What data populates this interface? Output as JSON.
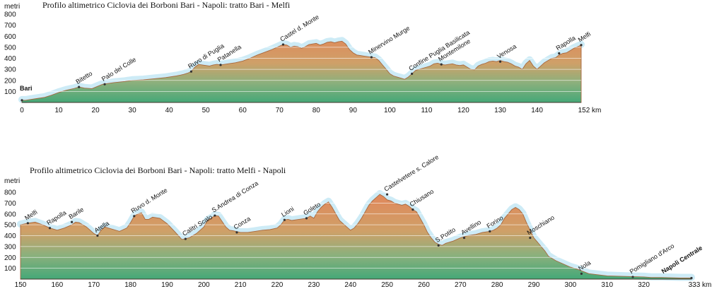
{
  "chart_data": [
    {
      "type": "area",
      "title": "Profilo altimetrico Ciclovia dei Borboni Bari - Napoli: tratto Bari - Melfi",
      "ylabel": "metri",
      "xunit": "km",
      "xlim": [
        0,
        152
      ],
      "ylim": [
        0,
        800
      ],
      "x_ticks": [
        {
          "value": 0,
          "label": "0"
        },
        {
          "value": 10,
          "label": "10"
        },
        {
          "value": 20,
          "label": "20"
        },
        {
          "value": 30,
          "label": "30"
        },
        {
          "value": 40,
          "label": "40"
        },
        {
          "value": 50,
          "label": "50"
        },
        {
          "value": 60,
          "label": "60"
        },
        {
          "value": 70,
          "label": "70",
          "large": true
        },
        {
          "value": 80,
          "label": "80"
        },
        {
          "value": 90,
          "label": "90"
        },
        {
          "value": 100,
          "label": "100"
        },
        {
          "value": 110,
          "label": "110"
        },
        {
          "value": 120,
          "label": "120"
        },
        {
          "value": 130,
          "label": "130"
        },
        {
          "value": 140,
          "label": "140"
        },
        {
          "value": 152,
          "label": "152 km"
        }
      ],
      "y_ticks": [
        100,
        200,
        300,
        400,
        500,
        600,
        700,
        800
      ],
      "profile": {
        "x": [
          0,
          1,
          2,
          4,
          6,
          8,
          10,
          12,
          14,
          15.5,
          17,
          19,
          20.5,
          22,
          23,
          25,
          28,
          30,
          33,
          36,
          39,
          42,
          44,
          45,
          46,
          47,
          48,
          49,
          50,
          51,
          52,
          53,
          54,
          56,
          58,
          60,
          62,
          64,
          66,
          68,
          70,
          71,
          72,
          73,
          74,
          75,
          76,
          77,
          78,
          79,
          80,
          81,
          82,
          83,
          84,
          85,
          86,
          87,
          88,
          89,
          90,
          91,
          92,
          93,
          94,
          95,
          96,
          97,
          98,
          99,
          100,
          101,
          102,
          103,
          104,
          105,
          106,
          107,
          108,
          109,
          110,
          111,
          112,
          113,
          114,
          115,
          116,
          117,
          118,
          119,
          120,
          121,
          122,
          123,
          124,
          125,
          126,
          127,
          128,
          129,
          130,
          131,
          132,
          133,
          134,
          135,
          136,
          137,
          138,
          139,
          140,
          141,
          142,
          143,
          144,
          145,
          146,
          147,
          148,
          149,
          150,
          151,
          152
        ],
        "y": [
          20,
          20,
          25,
          35,
          45,
          65,
          90,
          110,
          125,
          140,
          130,
          125,
          145,
          165,
          170,
          180,
          190,
          200,
          205,
          215,
          225,
          240,
          255,
          265,
          280,
          320,
          345,
          340,
          335,
          330,
          340,
          345,
          340,
          350,
          360,
          375,
          400,
          430,
          455,
          480,
          510,
          525,
          520,
          500,
          510,
          505,
          490,
          505,
          525,
          530,
          535,
          520,
          530,
          545,
          550,
          540,
          550,
          555,
          530,
          480,
          450,
          430,
          425,
          420,
          415,
          410,
          405,
          380,
          340,
          300,
          260,
          240,
          230,
          220,
          210,
          230,
          260,
          290,
          300,
          310,
          320,
          330,
          350,
          355,
          345,
          340,
          345,
          350,
          340,
          335,
          340,
          320,
          300,
          295,
          330,
          345,
          355,
          370,
          375,
          370,
          380,
          370,
          365,
          350,
          330,
          320,
          300,
          350,
          380,
          330,
          300,
          330,
          360,
          380,
          400,
          405,
          430,
          445,
          450,
          470,
          490,
          505,
          520
        ]
      },
      "places": [
        {
          "name": "Bari",
          "x": 0,
          "y": 20,
          "bold": true
        },
        {
          "name": "Bitetto",
          "x": 15.5,
          "y": 140
        },
        {
          "name": "Palo del Colle",
          "x": 22.5,
          "y": 165
        },
        {
          "name": "Ruvo di Puglia",
          "x": 46,
          "y": 280
        },
        {
          "name": "Patanella",
          "x": 54,
          "y": 340
        },
        {
          "name": "Castel d. Monte",
          "x": 71,
          "y": 525
        },
        {
          "name": "Minervino Murge",
          "x": 95,
          "y": 410
        },
        {
          "name": "Confine Puglia Basilicata",
          "x": 106,
          "y": 260
        },
        {
          "name": "Montemilone",
          "x": 114,
          "y": 345
        },
        {
          "name": "Venosa",
          "x": 130,
          "y": 370
        },
        {
          "name": "Rapolla",
          "x": 146,
          "y": 445
        },
        {
          "name": "Melfi",
          "x": 152,
          "y": 520
        }
      ]
    },
    {
      "type": "area",
      "title": "Profilo altimetrico Ciclovia dei Borboni Bari - Napoli: tratto Melfi - Napoli",
      "ylabel": "metri",
      "xunit": "km",
      "xlim": [
        150,
        333
      ],
      "ylim": [
        0,
        800
      ],
      "x_ticks": [
        {
          "value": 150,
          "label": "150"
        },
        {
          "value": 160,
          "label": "160"
        },
        {
          "value": 170,
          "label": "170"
        },
        {
          "value": 180,
          "label": "180"
        },
        {
          "value": 190,
          "label": "190"
        },
        {
          "value": 200,
          "label": "200"
        },
        {
          "value": 210,
          "label": "210"
        },
        {
          "value": 220,
          "label": "220"
        },
        {
          "value": 230,
          "label": "230"
        },
        {
          "value": 240,
          "label": "240"
        },
        {
          "value": 250,
          "label": "250"
        },
        {
          "value": 260,
          "label": "260"
        },
        {
          "value": 270,
          "label": "270"
        },
        {
          "value": 280,
          "label": "280"
        },
        {
          "value": 290,
          "label": "290"
        },
        {
          "value": 300,
          "label": "300"
        },
        {
          "value": 310,
          "label": "310"
        },
        {
          "value": 320,
          "label": "320"
        },
        {
          "value": 333,
          "label": "333 km"
        }
      ],
      "y_ticks": [
        100,
        200,
        300,
        400,
        500,
        600,
        700,
        800
      ],
      "profile": {
        "x": [
          150,
          152,
          154,
          156,
          158,
          160,
          162,
          164,
          165,
          166,
          168,
          170,
          171,
          172,
          173,
          175,
          177,
          179,
          180,
          181,
          182,
          183,
          184,
          185,
          186,
          188,
          190,
          192,
          194,
          196,
          198,
          200,
          201,
          202,
          203,
          204,
          205,
          206,
          207,
          208,
          210,
          212,
          214,
          216,
          218,
          220,
          221,
          222,
          223,
          224,
          225,
          226,
          228,
          229,
          230,
          231,
          232,
          233,
          234,
          235,
          236,
          237,
          238,
          239,
          240,
          241,
          242,
          243,
          244,
          245,
          246,
          247,
          248,
          249,
          250,
          251,
          252,
          253,
          254,
          255,
          256,
          257,
          258,
          259,
          260,
          261,
          262,
          263,
          264,
          265,
          266,
          268,
          270,
          272,
          274,
          276,
          278,
          279,
          280,
          281,
          282,
          283,
          284,
          285,
          286,
          287,
          288,
          289,
          290,
          291,
          292,
          293,
          294,
          296,
          298,
          300,
          302,
          305,
          310,
          315,
          320,
          322,
          325,
          330,
          333
        ],
        "y": [
          500,
          515,
          525,
          500,
          470,
          450,
          470,
          500,
          525,
          520,
          480,
          420,
          400,
          450,
          480,
          460,
          440,
          470,
          520,
          580,
          600,
          610,
          550,
          550,
          570,
          560,
          510,
          440,
          365,
          380,
          420,
          480,
          540,
          560,
          585,
          580,
          530,
          480,
          450,
          445,
          430,
          430,
          440,
          450,
          455,
          470,
          500,
          545,
          550,
          540,
          545,
          550,
          560,
          580,
          560,
          620,
          660,
          690,
          710,
          660,
          600,
          540,
          510,
          480,
          450,
          470,
          510,
          560,
          620,
          680,
          720,
          750,
          780,
          760,
          730,
          720,
          700,
          690,
          680,
          690,
          670,
          640,
          620,
          560,
          500,
          430,
          380,
          340,
          320,
          310,
          330,
          350,
          380,
          400,
          410,
          430,
          440,
          450,
          470,
          500,
          560,
          600,
          640,
          660,
          640,
          600,
          520,
          450,
          380,
          340,
          300,
          260,
          210,
          170,
          140,
          110,
          90,
          50,
          30,
          25,
          20,
          15,
          15,
          10,
          10
        ]
      },
      "places": [
        {
          "name": "Melfi",
          "x": 152,
          "y": 515
        },
        {
          "name": "Rapolla",
          "x": 158,
          "y": 470
        },
        {
          "name": "Barile",
          "x": 164,
          "y": 525
        },
        {
          "name": "Atella",
          "x": 171,
          "y": 400
        },
        {
          "name": "Ruvo d. Monte",
          "x": 181,
          "y": 580
        },
        {
          "name": "Calitri Scalo",
          "x": 195,
          "y": 370
        },
        {
          "name": "S.Andrea di Conza",
          "x": 203,
          "y": 585
        },
        {
          "name": "Conza",
          "x": 209,
          "y": 430
        },
        {
          "name": "Lioni",
          "x": 222,
          "y": 545
        },
        {
          "name": "Goleto",
          "x": 228,
          "y": 560
        },
        {
          "name": "Castelvetere s. Calore",
          "x": 250,
          "y": 780
        },
        {
          "name": "Chiusano",
          "x": 257,
          "y": 640
        },
        {
          "name": "S.Potito",
          "x": 264,
          "y": 310
        },
        {
          "name": "Avellino",
          "x": 271,
          "y": 380
        },
        {
          "name": "Forino",
          "x": 278,
          "y": 440
        },
        {
          "name": "Moschiano",
          "x": 289,
          "y": 380
        },
        {
          "name": "Nola",
          "x": 303,
          "y": 50
        },
        {
          "name": "Pomigliano d'Arco",
          "x": 317,
          "y": 20
        },
        {
          "name": "Napoli Centrale",
          "x": 333,
          "y": 10,
          "bold": true
        }
      ]
    }
  ]
}
